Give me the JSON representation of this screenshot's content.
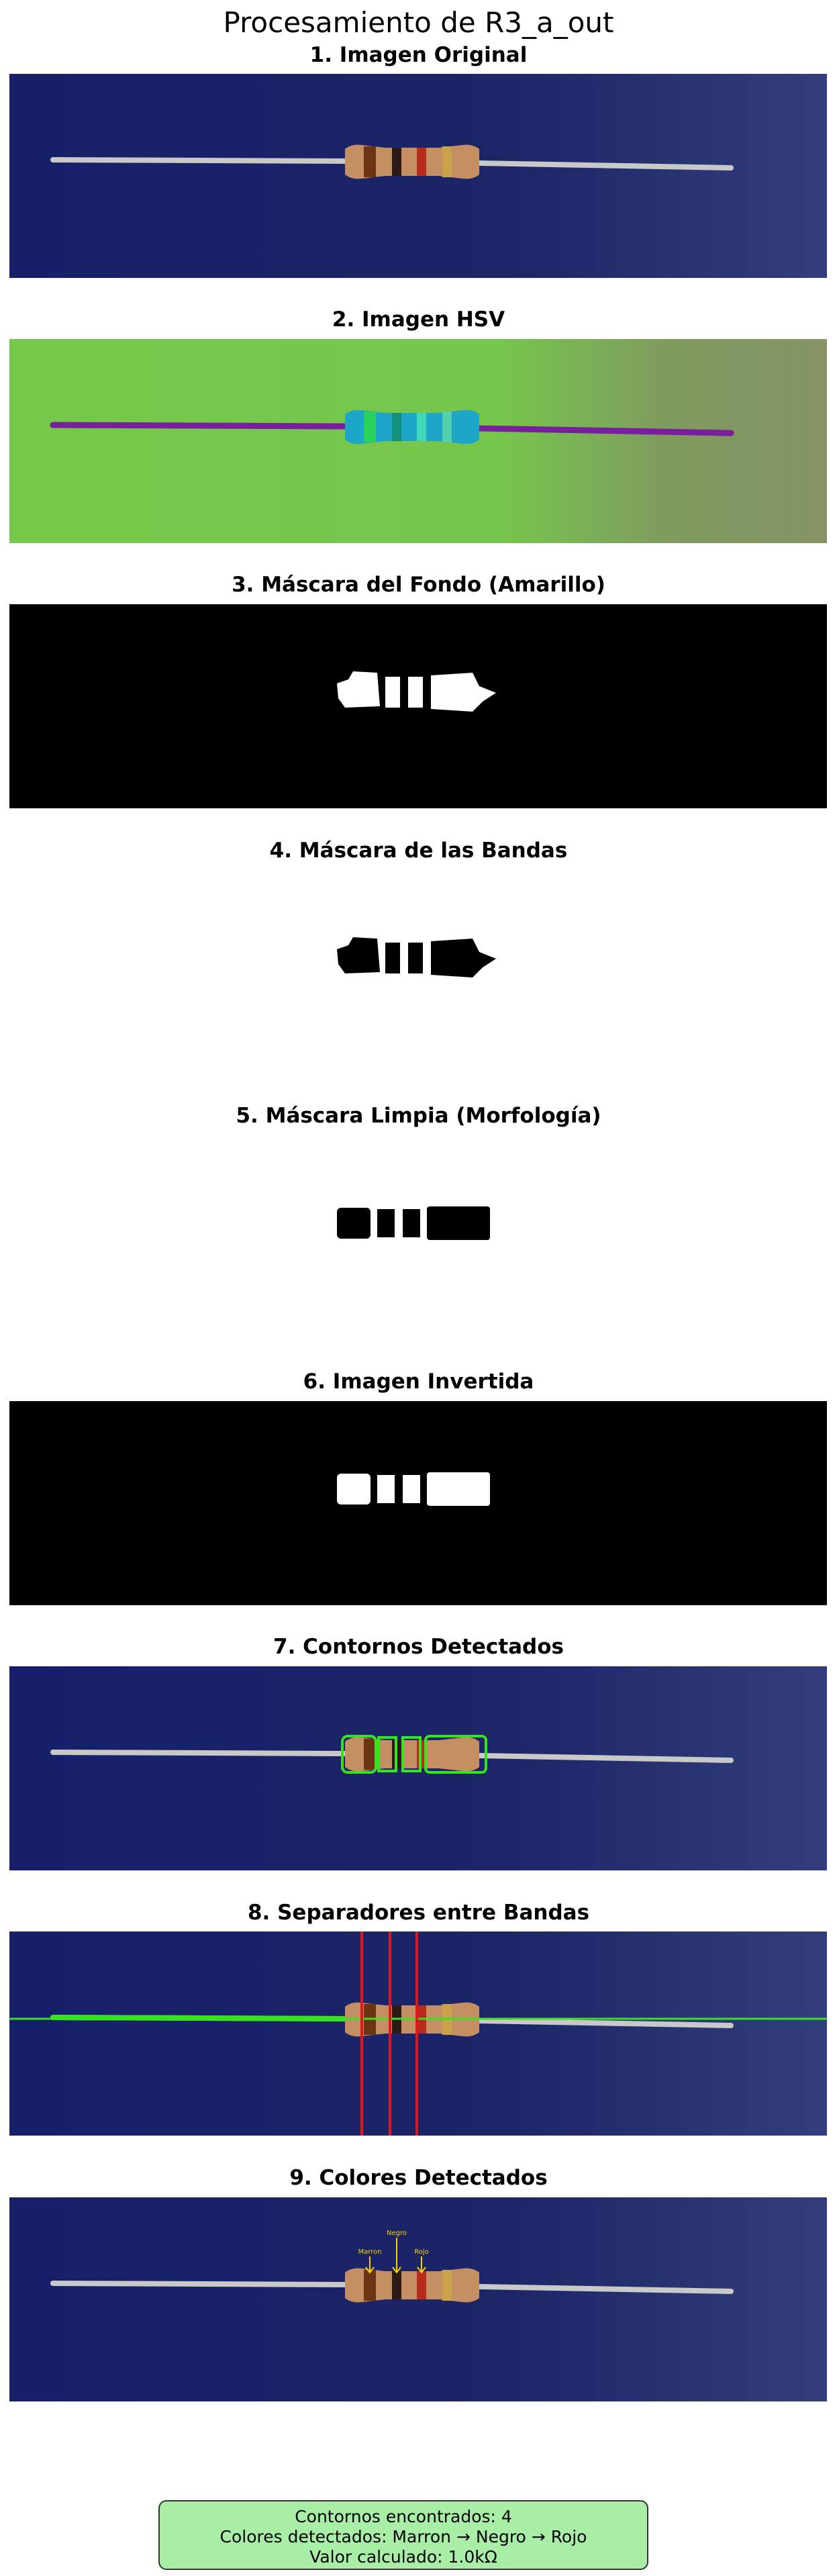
{
  "title": "Procesamiento de R3_a_out",
  "panels": [
    {
      "title": "1. Imagen Original"
    },
    {
      "title": "2. Imagen HSV"
    },
    {
      "title": "3. Máscara del Fondo (Amarillo)"
    },
    {
      "title": "4. Máscara de las Bandas"
    },
    {
      "title": "5. Máscara Limpia (Morfología)"
    },
    {
      "title": "6. Imagen Invertida"
    },
    {
      "title": "7. Contornos Detectados"
    },
    {
      "title": "8. Separadores entre Bandas"
    },
    {
      "title": "9. Colores Detectados"
    }
  ],
  "band_labels": [
    "Marron",
    "Negro",
    "Rojo"
  ],
  "info": {
    "line1": "Contornos encontrados: 4",
    "line2": "Colores detectados: Marron → Negro → Rojo",
    "line3": "Valor calculado: 1.0kΩ"
  },
  "colors": {
    "background_blue": "#1c2566",
    "hsv_green": "#74c94a",
    "contour_green": "#37e21f",
    "separator_red": "#e0161a",
    "info_box": "#a9eea6",
    "label_yellow": "#f4d400"
  }
}
